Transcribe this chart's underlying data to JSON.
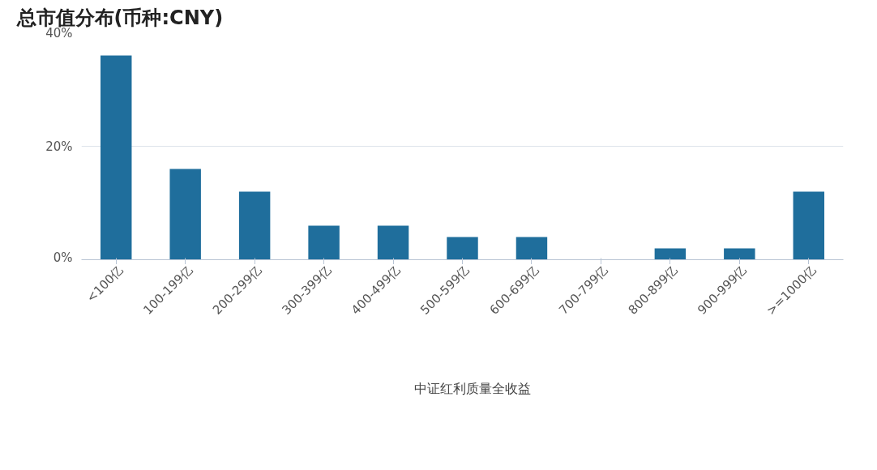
{
  "chart_data": {
    "type": "bar",
    "title": "总市值分布(币种:CNY)",
    "categories": [
      "<100亿",
      "100-199亿",
      "200-299亿",
      "300-399亿",
      "400-499亿",
      "500-599亿",
      "600-699亿",
      "700-799亿",
      "800-899亿",
      "900-999亿",
      ">=1000亿"
    ],
    "series": [
      {
        "name": "中证红利质量全收益",
        "color": "#1f6e9c",
        "values": [
          36,
          16,
          12,
          6,
          6,
          4,
          4,
          0,
          2,
          2,
          12
        ]
      }
    ],
    "ylim": [
      0,
      40
    ],
    "yticks": [
      {
        "value": 0,
        "label": "0%"
      },
      {
        "value": 20,
        "label": "20%"
      },
      {
        "value": 40,
        "label": "40%"
      }
    ],
    "grid": "y",
    "legend": "bottom"
  }
}
